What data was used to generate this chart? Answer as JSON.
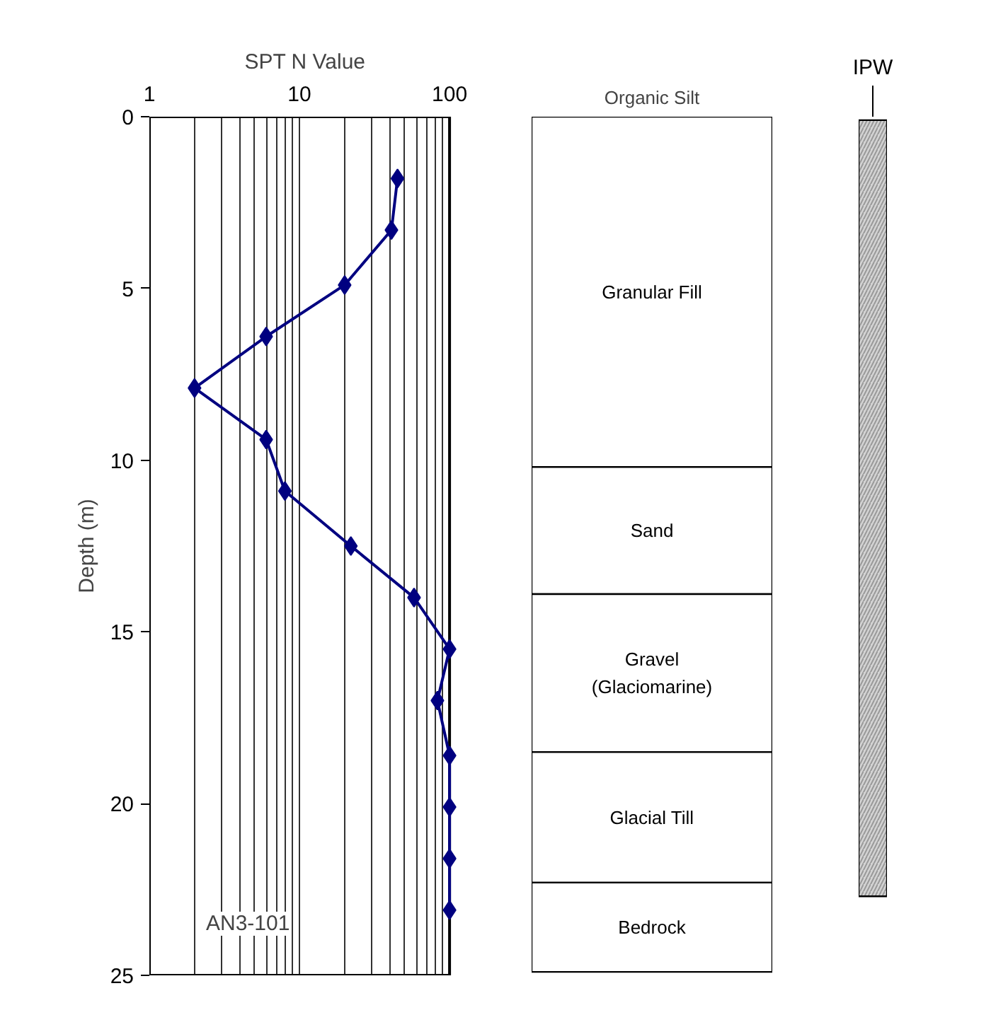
{
  "chart_data": [
    {
      "type": "line",
      "xlabel": "SPT N Value",
      "ylabel": "Depth (m)",
      "log": "x",
      "xlim": [
        1,
        100
      ],
      "ylim": [
        25,
        0
      ],
      "xticks": [
        1,
        10,
        100
      ],
      "yticks": [
        0,
        5,
        10,
        15,
        20,
        25
      ],
      "grid": "x",
      "marker": "diamond",
      "annotations": [
        "AN3-101"
      ],
      "series": [
        {
          "color": "#000080",
          "x": [
            45,
            41,
            20,
            6,
            2,
            6,
            8,
            22,
            58,
            100,
            83,
            100,
            100,
            100,
            100
          ],
          "values": [
            1.8,
            3.3,
            4.9,
            6.4,
            7.9,
            9.4,
            10.9,
            12.5,
            14.0,
            15.5,
            17.0,
            18.6,
            20.1,
            21.6,
            23.1
          ]
        }
      ]
    },
    {
      "type": "bar",
      "stacked": true,
      "categories": [
        null
      ],
      "ylim": [
        25,
        0
      ],
      "tick_labels": false,
      "annotations": [
        "Organic Silt"
      ],
      "series": [
        {
          "name": "Granular Fill",
          "color": "#ffffff",
          "values": [
            10.2
          ]
        },
        {
          "name": "Sand",
          "color": "#ffffff",
          "values": [
            3.7
          ]
        },
        {
          "name": "Gravel\n(Glaciomarine)",
          "color": "#ffffff",
          "values": [
            4.6
          ]
        },
        {
          "name": "Glacial Till",
          "color": "#ffffff",
          "values": [
            3.8
          ]
        },
        {
          "name": "Bedrock",
          "color": "#ffffff",
          "values": [
            2.6
          ]
        }
      ]
    },
    {
      "type": "bar",
      "categories": [
        "IPW"
      ],
      "values": [
        22.6
      ],
      "base": [
        0.1
      ],
      "ylim": [
        25,
        0
      ],
      "tick_labels": "x",
      "color": "#d3d3d3"
    }
  ]
}
